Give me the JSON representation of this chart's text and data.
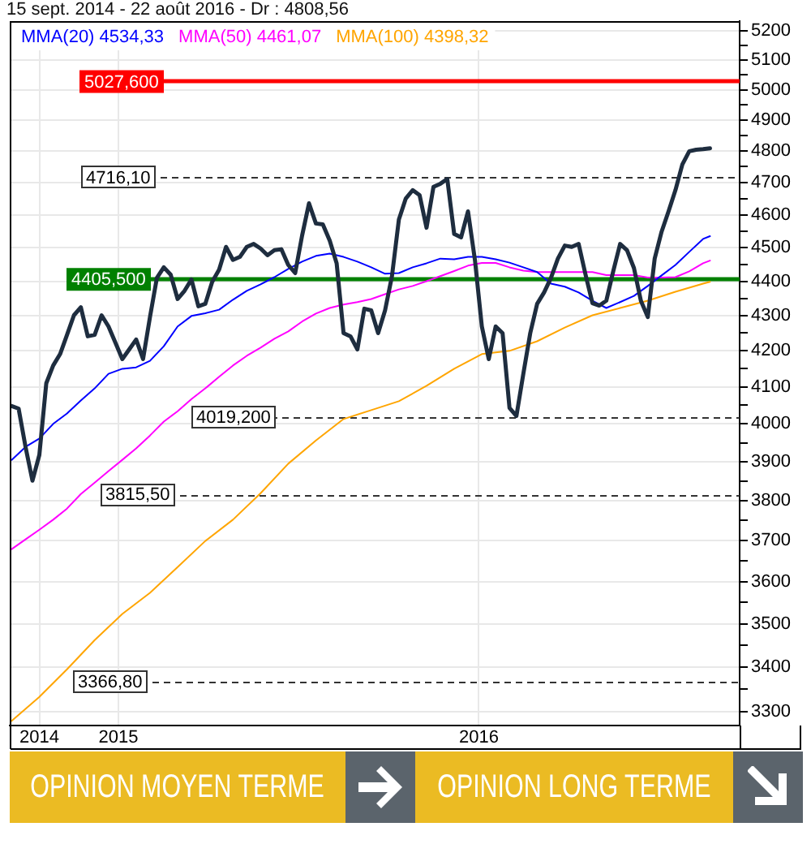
{
  "chart_data": {
    "type": "line",
    "title": "15 sept. 2014 - 22 août 2016 - Dr : 4808,56",
    "annotations": [
      "OPINION MOYEN TERME",
      "OPINION LONG TERME"
    ],
    "xlim": [
      "2014-09-13",
      "2016-09-21"
    ],
    "xticks": [
      {
        "value": "2014-10-13",
        "label": "2014"
      },
      {
        "value": "2015-01-01",
        "label": "2015"
      },
      {
        "value": "2016-01-01",
        "label": "2016"
      }
    ],
    "ylim": [
      3270,
      5235
    ],
    "yticks": [
      3300,
      {
        "value": 3350,
        "label": null
      },
      3400,
      {
        "value": 3450,
        "label": null
      },
      3500,
      {
        "value": 3550,
        "label": null
      },
      3600,
      {
        "value": 3650,
        "label": null
      },
      3700,
      {
        "value": 3750,
        "label": null
      },
      3800,
      {
        "value": 3850,
        "label": null
      },
      3900,
      {
        "value": 3950,
        "label": null
      },
      4000,
      {
        "value": 4050,
        "label": null
      },
      4100,
      {
        "value": 4150,
        "label": null
      },
      4200,
      {
        "value": 4250,
        "label": null
      },
      4300,
      {
        "value": 4350,
        "label": null
      },
      4400,
      {
        "value": 4450,
        "label": null
      },
      4500,
      {
        "value": 4550,
        "label": null
      },
      4600,
      {
        "value": 4650,
        "label": null
      },
      4700,
      {
        "value": 4750,
        "label": null
      },
      4800,
      {
        "value": 4850,
        "label": null
      },
      4900,
      {
        "value": 4950,
        "label": null
      },
      5000,
      {
        "value": 5050,
        "label": null
      },
      5100,
      {
        "value": 5150,
        "label": null
      },
      5200
    ],
    "log": true,
    "grid": true,
    "legend": "top left",
    "marker": "none",
    "series": [
      {
        "color": "#1e2d3f",
        "x": [
          "2014-09-15",
          "2014-09-22",
          "2014-09-29",
          "2014-10-06",
          "2014-10-13",
          "2014-10-20",
          "2014-10-27",
          "2014-11-03",
          "2014-11-10",
          "2014-11-17",
          "2014-11-24",
          "2014-12-01",
          "2014-12-08",
          "2014-12-15",
          "2014-12-22",
          "2014-12-29",
          "2015-01-05",
          "2015-01-12",
          "2015-01-19",
          "2015-01-26",
          "2015-02-02",
          "2015-02-09",
          "2015-02-16",
          "2015-02-23",
          "2015-03-02",
          "2015-03-09",
          "2015-03-16",
          "2015-03-23",
          "2015-03-30",
          "2015-04-06",
          "2015-04-13",
          "2015-04-20",
          "2015-04-27",
          "2015-05-04",
          "2015-05-11",
          "2015-05-18",
          "2015-05-25",
          "2015-06-01",
          "2015-06-08",
          "2015-06-15",
          "2015-06-22",
          "2015-06-29",
          "2015-07-06",
          "2015-07-13",
          "2015-07-20",
          "2015-07-27",
          "2015-08-03",
          "2015-08-10",
          "2015-08-17",
          "2015-08-24",
          "2015-08-31",
          "2015-09-07",
          "2015-09-14",
          "2015-09-21",
          "2015-09-28",
          "2015-10-05",
          "2015-10-12",
          "2015-10-19",
          "2015-10-26",
          "2015-11-02",
          "2015-11-09",
          "2015-11-16",
          "2015-11-23",
          "2015-11-30",
          "2015-12-07",
          "2015-12-14",
          "2015-12-21",
          "2015-12-28",
          "2016-01-04",
          "2016-01-11",
          "2016-01-18",
          "2016-01-25",
          "2016-02-01",
          "2016-02-08",
          "2016-02-15",
          "2016-02-22",
          "2016-02-29",
          "2016-03-07",
          "2016-03-14",
          "2016-03-21",
          "2016-03-28",
          "2016-04-04",
          "2016-04-11",
          "2016-04-18",
          "2016-04-25",
          "2016-05-02",
          "2016-05-09",
          "2016-05-16",
          "2016-05-23",
          "2016-05-30",
          "2016-06-06",
          "2016-06-13",
          "2016-06-20",
          "2016-06-27",
          "2016-07-04",
          "2016-07-11",
          "2016-07-18",
          "2016-07-25",
          "2016-08-01",
          "2016-08-08",
          "2016-08-15",
          "2016-08-22"
        ],
        "values": [
          4048,
          4041,
          3939,
          3851,
          3918,
          4110,
          4159,
          4191,
          4245,
          4301,
          4324,
          4241,
          4245,
          4301,
          4269,
          4223,
          4177,
          4204,
          4232,
          4177,
          4296,
          4410,
          4441,
          4419,
          4348,
          4372,
          4405,
          4327,
          4334,
          4398,
          4434,
          4502,
          4463,
          4472,
          4502,
          4511,
          4497,
          4477,
          4492,
          4495,
          4448,
          4424,
          4536,
          4635,
          4573,
          4570,
          4521,
          4453,
          4250,
          4241,
          4204,
          4320,
          4315,
          4250,
          4315,
          4415,
          4585,
          4650,
          4676,
          4660,
          4560,
          4686,
          4696,
          4711,
          4541,
          4531,
          4610,
          4463,
          4269,
          4177,
          4269,
          4250,
          4043,
          4021,
          4136,
          4250,
          4334,
          4367,
          4410,
          4467,
          4506,
          4502,
          4511,
          4419,
          4336,
          4329,
          4343,
          4429,
          4511,
          4492,
          4439,
          4343,
          4296,
          4467,
          4548,
          4610,
          4676,
          4757,
          4799,
          4804,
          4806,
          4808.56
        ]
      },
      {
        "name": "MMA(20) 4534,33",
        "color": "#0000ff",
        "x": [
          "2014-09-15",
          "2014-09-29",
          "2014-10-13",
          "2014-10-27",
          "2014-11-10",
          "2014-11-24",
          "2014-12-08",
          "2014-12-22",
          "2015-01-05",
          "2015-01-19",
          "2015-02-02",
          "2015-02-16",
          "2015-03-02",
          "2015-03-16",
          "2015-03-30",
          "2015-04-13",
          "2015-04-27",
          "2015-05-11",
          "2015-05-25",
          "2015-06-08",
          "2015-06-22",
          "2015-07-06",
          "2015-07-20",
          "2015-08-03",
          "2015-08-17",
          "2015-08-31",
          "2015-09-14",
          "2015-09-28",
          "2015-10-12",
          "2015-10-26",
          "2015-11-09",
          "2015-11-23",
          "2015-12-07",
          "2015-12-21",
          "2016-01-04",
          "2016-01-18",
          "2016-02-01",
          "2016-02-15",
          "2016-02-29",
          "2016-03-14",
          "2016-03-28",
          "2016-04-11",
          "2016-04-25",
          "2016-05-09",
          "2016-05-23",
          "2016-06-06",
          "2016-06-20",
          "2016-07-04",
          "2016-07-18",
          "2016-08-01",
          "2016-08-15",
          "2016-08-22"
        ],
        "values": [
          3905,
          3939,
          3961,
          4000,
          4028,
          4063,
          4096,
          4136,
          4150,
          4154,
          4172,
          4213,
          4269,
          4299,
          4307,
          4317,
          4346,
          4372,
          4391,
          4412,
          4436,
          4458,
          4475,
          4482,
          4472,
          4458,
          4441,
          4422,
          4424,
          4441,
          4453,
          4467,
          4465,
          4472,
          4472,
          4465,
          4455,
          4441,
          4427,
          4393,
          4384,
          4367,
          4343,
          4322,
          4339,
          4357,
          4386,
          4417,
          4448,
          4487,
          4526,
          4534.33
        ]
      },
      {
        "name": "MMA(50) 4461,07",
        "color": "#ff00ff",
        "x": [
          "2014-09-15",
          "2014-09-29",
          "2014-10-13",
          "2014-10-27",
          "2014-11-10",
          "2014-11-24",
          "2014-12-08",
          "2014-12-22",
          "2015-01-05",
          "2015-01-19",
          "2015-02-02",
          "2015-02-16",
          "2015-03-02",
          "2015-03-16",
          "2015-03-30",
          "2015-04-13",
          "2015-04-27",
          "2015-05-11",
          "2015-05-25",
          "2015-06-08",
          "2015-06-22",
          "2015-07-06",
          "2015-07-20",
          "2015-08-03",
          "2015-08-17",
          "2015-08-31",
          "2015-09-14",
          "2015-09-28",
          "2015-10-12",
          "2015-10-26",
          "2015-11-09",
          "2015-11-23",
          "2015-12-07",
          "2015-12-21",
          "2016-01-04",
          "2016-01-18",
          "2016-02-01",
          "2016-02-15",
          "2016-02-29",
          "2016-03-14",
          "2016-03-28",
          "2016-04-11",
          "2016-04-25",
          "2016-05-09",
          "2016-05-23",
          "2016-06-06",
          "2016-06-20",
          "2016-07-04",
          "2016-07-18",
          "2016-08-01",
          "2016-08-15",
          "2016-08-22"
        ],
        "values": [
          3679,
          3703,
          3727,
          3752,
          3780,
          3817,
          3846,
          3876,
          3905,
          3935,
          3969,
          4006,
          4034,
          4067,
          4096,
          4128,
          4159,
          4186,
          4209,
          4234,
          4255,
          4283,
          4306,
          4322,
          4332,
          4339,
          4348,
          4362,
          4376,
          4386,
          4400,
          4415,
          4430,
          4446,
          4454,
          4454,
          4441,
          4431,
          4427,
          4427,
          4427,
          4427,
          4427,
          4418,
          4418,
          4418,
          4411,
          4411,
          4412,
          4429,
          4453,
          4461.07
        ]
      },
      {
        "name": "MMA(100) 4398,32",
        "color": "#ffa500",
        "x": [
          "2014-09-15",
          "2014-10-13",
          "2014-11-10",
          "2014-12-08",
          "2015-01-05",
          "2015-02-02",
          "2015-03-02",
          "2015-03-30",
          "2015-04-27",
          "2015-05-25",
          "2015-06-22",
          "2015-07-20",
          "2015-08-17",
          "2015-09-14",
          "2015-10-12",
          "2015-11-09",
          "2015-12-07",
          "2016-01-04",
          "2016-02-01",
          "2016-02-29",
          "2016-03-28",
          "2016-04-25",
          "2016-05-23",
          "2016-06-20",
          "2016-07-18",
          "2016-08-15",
          "2016-08-22"
        ],
        "values": [
          3280,
          3333,
          3395,
          3462,
          3523,
          3573,
          3635,
          3699,
          3752,
          3819,
          3895,
          3956,
          4013,
          4037,
          4061,
          4103,
          4150,
          4191,
          4200,
          4227,
          4266,
          4301,
          4322,
          4343,
          4369,
          4393,
          4398.32
        ]
      }
    ],
    "ref_lines": [
      {
        "axis": "y",
        "value": 5027.6,
        "label": "5027,600",
        "color": "#ff0000"
      },
      {
        "axis": "y",
        "value": 4716.1,
        "label": "4716,10",
        "color": "#333333",
        "line_style": "dashed"
      },
      {
        "axis": "y",
        "value": 4405.5,
        "label": "4405,500",
        "color": "#008000"
      },
      {
        "axis": "y",
        "value": 4019.2,
        "label": "4019,200",
        "color": "#333333",
        "line_style": "dashed"
      },
      {
        "axis": "y",
        "value": 3815.5,
        "label": "3815,50",
        "color": "#333333",
        "line_style": "dashed"
      },
      {
        "axis": "y",
        "value": 3366.8,
        "label": "3366,80",
        "color": "#333333",
        "line_style": "dashed"
      }
    ]
  }
}
